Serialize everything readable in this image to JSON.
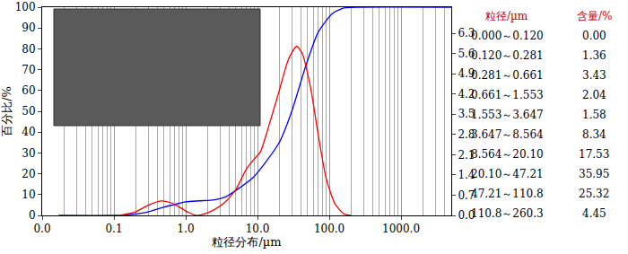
{
  "chart_data": {
    "type": "line",
    "x_label": "粒径分布/µm",
    "y_label": "百分比/%",
    "log": "x",
    "grid": "x",
    "xlim": [
      0.01,
      5000
    ],
    "xticks": [
      {
        "value": 0.01,
        "label": "0.0"
      },
      0.1,
      {
        "value": 1,
        "label": "1.0"
      },
      {
        "value": 10,
        "label": "10.0"
      },
      {
        "value": 100,
        "label": "100.0"
      },
      {
        "value": 1000,
        "label": "1000.0"
      }
    ],
    "ylim": [
      0,
      100
    ],
    "yticks": [
      0,
      10,
      20,
      30,
      40,
      50,
      60,
      70,
      80,
      90,
      100
    ],
    "y2lim": [
      0,
      7.2
    ],
    "y2ticks": [
      {
        "value": 0,
        "label": "0.0"
      },
      0.7,
      1.4,
      2.1,
      2.8,
      3.5,
      4.2,
      4.9,
      5.6,
      6.3
    ],
    "series": [
      {
        "color": "#0000ff",
        "axis": "y",
        "x": [
          0.017,
          0.1,
          0.15,
          0.281,
          0.5,
          0.661,
          1,
          1.553,
          2.5,
          3.647,
          5,
          8.564,
          12,
          20.1,
          30,
          47.21,
          70,
          110.8,
          160,
          260,
          5000
        ],
        "values": [
          0,
          0,
          0.3,
          1.5,
          4,
          5,
          6.5,
          7,
          7.5,
          9,
          12,
          18,
          24,
          35,
          50,
          72,
          88,
          97,
          99.6,
          100,
          100
        ]
      },
      {
        "color": "#ff0000",
        "axis": "y2",
        "x": [
          0.12,
          0.2,
          0.3,
          0.45,
          0.6,
          0.8,
          1.1,
          1.4,
          1.8,
          2.5,
          3.5,
          5,
          7,
          9,
          11,
          14,
          20,
          27,
          35,
          42,
          55,
          70,
          90,
          120,
          160,
          200
        ],
        "values": [
          0,
          0.12,
          0.35,
          0.5,
          0.45,
          0.3,
          0.1,
          0,
          0.05,
          0.2,
          0.45,
          0.9,
          1.6,
          1.95,
          2.2,
          3.0,
          4.3,
          5.4,
          5.85,
          5.6,
          4.4,
          2.8,
          1.3,
          0.4,
          0.05,
          0
        ]
      }
    ]
  },
  "table": {
    "header": [
      "粒径/µm",
      "含量/%"
    ],
    "rows": [
      [
        "0.000～0.120",
        "0.00"
      ],
      [
        "0.120～0.281",
        "1.36"
      ],
      [
        "0.281～0.661",
        "3.43"
      ],
      [
        "0.661～1.553",
        "2.04"
      ],
      [
        "1.553～3.647",
        "1.58"
      ],
      [
        "3.647～8.564",
        "8.34"
      ],
      [
        "8.564～20.10",
        "17.53"
      ],
      [
        "20.10～47.21",
        "35.95"
      ],
      [
        "47.21～110.8",
        "25.32"
      ],
      [
        "110.8～260.3",
        "4.45"
      ]
    ]
  }
}
